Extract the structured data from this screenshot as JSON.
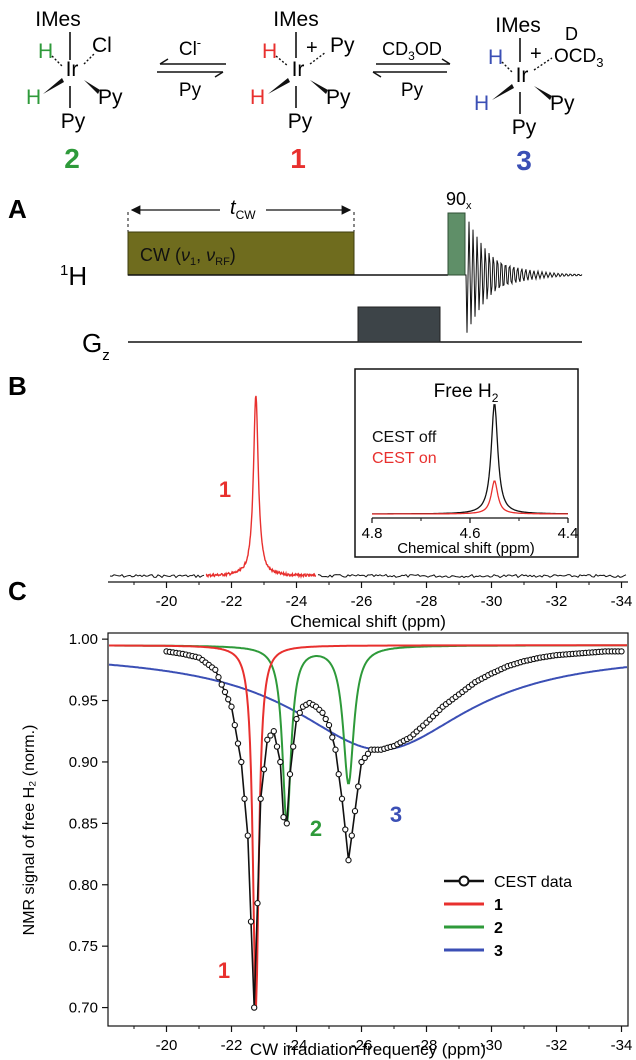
{
  "scheme": {
    "complex2": {
      "label": "2",
      "ligand_top": "IMes",
      "ligand_left_top": "H",
      "ligand_left_bottom": "H",
      "ligand_right_top": "Cl",
      "ligand_right_bottom": "Py",
      "ligand_bottom": "Py",
      "metal": "Ir"
    },
    "complex1": {
      "label": "1",
      "ligand_top": "IMes",
      "ligand_left_top": "H",
      "ligand_left_bottom": "H",
      "ligand_right_top": "Py",
      "ligand_right_bottom": "Py",
      "ligand_bottom": "Py",
      "metal": "Ir",
      "charge": "+"
    },
    "complex3": {
      "label": "3",
      "ligand_top": "IMes",
      "ligand_left_top": "H",
      "ligand_left_bottom": "H",
      "ligand_right_top_d": "D",
      "ligand_right_top": "OCD",
      "ligand_right_top_sub": "3",
      "ligand_right_bottom": "Py",
      "ligand_bottom": "Py",
      "metal": "Ir",
      "charge": "+"
    },
    "eq1": {
      "top": "Cl",
      "top_sup": "-",
      "bottom": "Py"
    },
    "eq2": {
      "top_a": "CD",
      "top_sub": "3",
      "top_b": "OD",
      "bottom": "Py"
    }
  },
  "panelA": {
    "letter": "A",
    "tcw_t": "t",
    "tcw_sub": "CW",
    "cw_label_a": "CW (",
    "cw_nu1": "ν",
    "cw_nu1_sub": "1",
    "cw_sep": ", ",
    "cw_nu2": "ν",
    "cw_nu2_sub": "RF",
    "cw_close": ")",
    "pulse": "90",
    "pulse_sub": "x",
    "ch1_sup": "1",
    "ch1": "H",
    "ch2": "G",
    "ch2_sub": "z"
  },
  "panelB": {
    "letter": "B",
    "peak_label": "1",
    "xlabel": "Chemical shift (ppm)",
    "xticks": [
      "-20",
      "-22",
      "-24",
      "-26",
      "-28",
      "-30",
      "-32",
      "-34"
    ],
    "inset": {
      "title": "Free H",
      "title_sub": "2",
      "legend_off": "CEST off",
      "legend_on": "CEST on",
      "xlabel": "Chemical shift (ppm)",
      "xticks": [
        "4.8",
        "4.6",
        "4.4"
      ]
    }
  },
  "panelC": {
    "letter": "C",
    "ylabel": "NMR signal of free H₂ (norm.)",
    "xlabel": "CW irradiation frequency (ppm)",
    "curve_labels": {
      "c1": "1",
      "c2": "2",
      "c3": "3"
    },
    "legend": [
      "CEST data",
      "1",
      "2",
      "3"
    ]
  },
  "colors": {
    "complex1": "#e8302e",
    "complex2": "#2e9a3a",
    "complex3": "#3b4fb5",
    "cw_block": "#6f6c1e",
    "pulse90": "#5f8f68",
    "gradient": "#3d4448"
  },
  "chart_data": [
    {
      "type": "line",
      "panel": "B",
      "title": "",
      "xlabel": "Chemical shift (ppm)",
      "ylabel": "",
      "xlim": [
        -18.2,
        -34.2
      ],
      "xticks": [
        -20,
        -22,
        -24,
        -26,
        -28,
        -30,
        -32,
        -34
      ],
      "series": [
        {
          "name": "1",
          "color": "#e8302e",
          "peak_x": -22.75,
          "relative_height": 1.0,
          "region": [
            -21.2,
            -24.6
          ]
        }
      ]
    },
    {
      "type": "line",
      "panel": "B-inset",
      "title": "Free H2",
      "xlabel": "Chemical shift (ppm)",
      "xlim": [
        4.8,
        4.4
      ],
      "xticks": [
        4.8,
        4.6,
        4.4
      ],
      "series": [
        {
          "name": "CEST off",
          "color": "#000000",
          "peak_x": 4.55,
          "relative_height": 1.0
        },
        {
          "name": "CEST on",
          "color": "#e8302e",
          "peak_x": 4.55,
          "relative_height": 0.3
        }
      ]
    },
    {
      "type": "line",
      "panel": "C",
      "title": "",
      "xlabel": "CW irradiation frequency (ppm)",
      "ylabel": "NMR signal of free H2 (norm.)",
      "xlim": [
        -18.2,
        -34.2
      ],
      "ylim": [
        0.685,
        1.005
      ],
      "xticks": [
        -20,
        -22,
        -24,
        -26,
        -28,
        -30,
        -32,
        -34
      ],
      "yticks": [
        0.7,
        0.75,
        0.8,
        0.85,
        0.9,
        0.95,
        1.0
      ],
      "legend_position": "bottom-right",
      "series": [
        {
          "name": "CEST data",
          "color": "#000000",
          "marker": "circle",
          "x": [
            -20.0,
            -20.5,
            -21.0,
            -21.5,
            -22.0,
            -22.3,
            -22.5,
            -22.7,
            -22.9,
            -23.1,
            -23.3,
            -23.5,
            -23.6,
            -23.7,
            -23.8,
            -24.0,
            -24.2,
            -24.4,
            -24.6,
            -24.8,
            -25.0,
            -25.2,
            -25.4,
            -25.6,
            -25.8,
            -26.0,
            -26.3,
            -26.6,
            -27.0,
            -27.5,
            -28.0,
            -28.5,
            -29.0,
            -29.5,
            -30.0,
            -30.5,
            -31.0,
            -31.5,
            -32.0,
            -32.5,
            -33.0,
            -33.5,
            -34.0
          ],
          "y": [
            0.99,
            0.988,
            0.985,
            0.975,
            0.945,
            0.9,
            0.84,
            0.7,
            0.87,
            0.918,
            0.925,
            0.9,
            0.855,
            0.85,
            0.89,
            0.935,
            0.945,
            0.948,
            0.945,
            0.94,
            0.93,
            0.91,
            0.87,
            0.82,
            0.86,
            0.9,
            0.91,
            0.91,
            0.913,
            0.92,
            0.932,
            0.945,
            0.955,
            0.965,
            0.972,
            0.978,
            0.982,
            0.985,
            0.987,
            0.988,
            0.989,
            0.99,
            0.99
          ]
        },
        {
          "name": "1",
          "color": "#e8302e",
          "type": "lorentzian",
          "center": -22.75,
          "baseline": 0.995,
          "min": 0.7
        },
        {
          "name": "2",
          "color": "#2e9a3a",
          "type": "lorentzian-pair",
          "centers": [
            -23.7,
            -25.6
          ],
          "baseline": 0.995,
          "mins": [
            0.85,
            0.883
          ]
        },
        {
          "name": "3",
          "color": "#3b4fb5",
          "type": "broad",
          "center": -26.6,
          "baseline": 0.99,
          "min": 0.91
        }
      ]
    }
  ]
}
